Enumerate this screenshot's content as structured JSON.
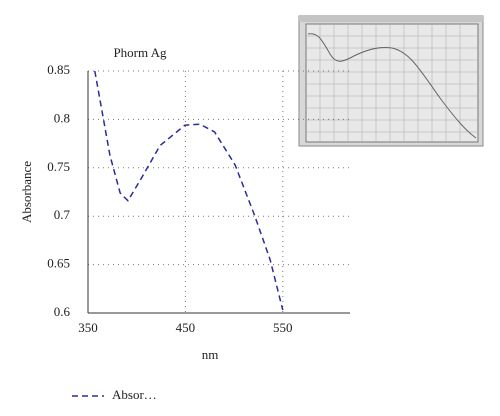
{
  "chart_data": {
    "type": "line",
    "title": "Phorm Ag",
    "xlabel": "nm",
    "ylabel": "Absorbance",
    "x": [
      357,
      372.5,
      383,
      391,
      403.5,
      424,
      449.5,
      465,
      480,
      501,
      521,
      537,
      550
    ],
    "series": [
      {
        "name": "Absor…",
        "color": "#2b2b9c",
        "values": [
          0.85,
          0.763,
          0.724,
          0.716,
          0.737,
          0.773,
          0.794,
          0.795,
          0.787,
          0.753,
          0.701,
          0.655,
          0.603
        ]
      }
    ],
    "xlim": [
      350,
      619
    ],
    "xticks": [
      350,
      450,
      550
    ],
    "ylim": [
      0.6,
      0.85
    ],
    "yticks": [
      0.6,
      0.65,
      0.7,
      0.75,
      0.8,
      0.85
    ],
    "grid": true,
    "legend": "bottom-left"
  }
}
